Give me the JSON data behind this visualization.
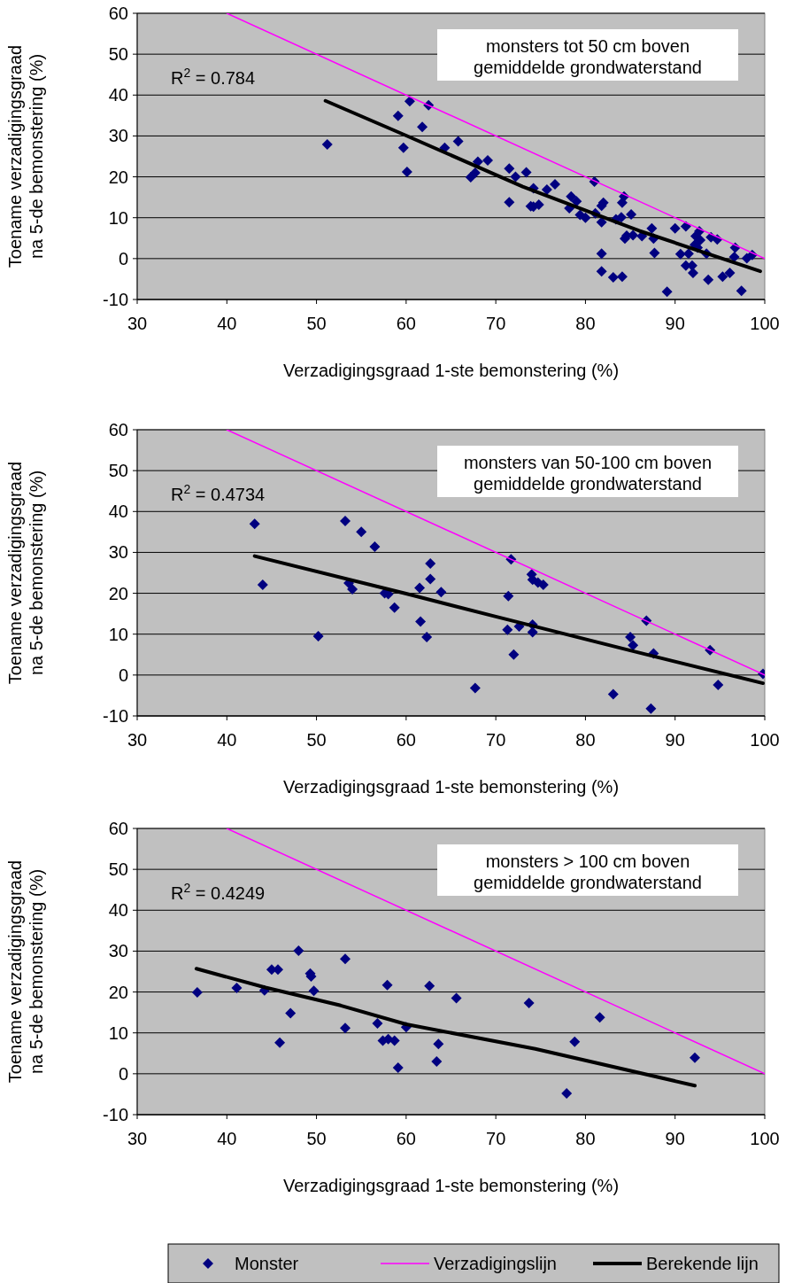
{
  "chart_data": [
    {
      "type": "scatter",
      "xlabel": "Verzadigingsgraad 1-ste bemonstering (%)",
      "ylabel": "Toename verzadigingsgraad na 5-de bemonstering (%)",
      "xlim": [
        30,
        100
      ],
      "xticks": [
        30,
        40,
        50,
        60,
        70,
        80,
        90,
        100
      ],
      "ylim": [
        -10,
        60
      ],
      "yticks": [
        -10,
        0,
        10,
        20,
        30,
        40,
        50,
        60
      ],
      "grid": "y",
      "line_style": "solid",
      "annotations": [
        "R$^{2}$ = 0.784",
        "monsters tot 50 cm boven\ngemiddelde grondwaterstand"
      ],
      "series": [
        {
          "type": "scatter",
          "color": "#000080",
          "marker": "diamond",
          "x": [
            51.2,
            60.4,
            62.5,
            59.1,
            61.8,
            59.7,
            60.1,
            64.3,
            65.8,
            68.0,
            69.1,
            67.2,
            67.7,
            71.5,
            72.2,
            73.4,
            71.5,
            73.9,
            74.2,
            75.7,
            76.6,
            74.2,
            74.8,
            81.0,
            78.4,
            79.0,
            78.2,
            79.4,
            80.0,
            82.0,
            81.8,
            81.1,
            81.8,
            84.3,
            84.1,
            83.4,
            84.0,
            85.1,
            84.6,
            84.4,
            85.3,
            86.3,
            87.4,
            87.6,
            87.7,
            81.8,
            81.8,
            83.1,
            84.1,
            89.1,
            90.0,
            91.2,
            90.6,
            91.5,
            91.2,
            92.0,
            91.9,
            92.3,
            92.7,
            92.8,
            92.2,
            92.5,
            93.5,
            94.0,
            94.7,
            93.7,
            95.3,
            96.1,
            96.7,
            96.6,
            98.0,
            98.6,
            97.4
          ],
          "values": [
            27.9,
            38.5,
            37.5,
            34.9,
            32.2,
            27.1,
            21.2,
            27.1,
            28.7,
            23.7,
            24.0,
            19.9,
            21.0,
            22.0,
            20.0,
            21.1,
            13.8,
            12.8,
            17.2,
            16.9,
            18.2,
            12.7,
            13.2,
            18.8,
            15.2,
            14.0,
            12.3,
            10.7,
            10.0,
            13.7,
            12.9,
            11.1,
            8.9,
            15.2,
            13.7,
            9.6,
            10.1,
            10.8,
            5.6,
            4.9,
            5.7,
            5.5,
            7.4,
            4.9,
            1.4,
            1.2,
            -3.1,
            -4.6,
            -4.4,
            -8.1,
            7.4,
            7.9,
            1.1,
            1.2,
            -1.7,
            -3.5,
            -1.7,
            5.5,
            6.7,
            4.5,
            3.4,
            2.7,
            1.2,
            5.2,
            4.7,
            -5.2,
            -4.4,
            -3.5,
            2.7,
            0.4,
            0.1,
            0.9,
            -7.9
          ]
        },
        {
          "type": "line",
          "color": "#ff00ff",
          "marker": "none",
          "x": [
            40,
            100
          ],
          "values": [
            60,
            0
          ]
        },
        {
          "type": "line",
          "color": "#000000",
          "marker": "none",
          "x": [
            51,
            60,
            73,
            86,
            99.5
          ],
          "values": [
            38.6,
            30.1,
            17.6,
            6.8,
            -3.1
          ]
        }
      ]
    },
    {
      "type": "scatter",
      "xlabel": "Verzadigingsgraad 1-ste bemonstering (%)",
      "ylabel": "Toename verzadigingsgraad na 5-de bemonstering (%)",
      "xlim": [
        30,
        100
      ],
      "xticks": [
        30,
        40,
        50,
        60,
        70,
        80,
        90,
        100
      ],
      "ylim": [
        -10,
        60
      ],
      "yticks": [
        -10,
        0,
        10,
        20,
        30,
        40,
        50,
        60
      ],
      "grid": "y",
      "line_style": "solid",
      "annotations": [
        "R$^{2}$ = 0.4734",
        "monsters van 50-100 cm boven\ngemiddelde grondwaterstand"
      ],
      "series": [
        {
          "type": "scatter",
          "color": "#000080",
          "marker": "diamond",
          "x": [
            43.1,
            44.0,
            50.2,
            53.2,
            55.0,
            56.5,
            53.6,
            54.0,
            57.6,
            58.0,
            58.7,
            61.5,
            62.7,
            62.7,
            63.9,
            61.6,
            62.3,
            67.7,
            71.7,
            71.4,
            71.3,
            72.6,
            72.0,
            74.0,
            74.1,
            74.7,
            75.3,
            74.1,
            74.1,
            83.1,
            85.0,
            85.3,
            86.8,
            87.6,
            87.3,
            93.9,
            94.8,
            99.8
          ],
          "values": [
            37.0,
            22.1,
            9.5,
            37.7,
            35.0,
            31.4,
            22.5,
            21.0,
            20.0,
            19.8,
            16.5,
            21.3,
            27.3,
            23.5,
            20.3,
            13.1,
            9.3,
            -3.2,
            28.3,
            19.3,
            11.1,
            11.9,
            5.0,
            24.6,
            23.3,
            22.6,
            22.1,
            12.3,
            10.5,
            -4.7,
            9.3,
            7.3,
            13.3,
            5.3,
            -8.2,
            6.1,
            -2.4,
            0.3
          ]
        },
        {
          "type": "line",
          "color": "#ff00ff",
          "marker": "none",
          "x": [
            40,
            100
          ],
          "values": [
            60,
            0
          ]
        },
        {
          "type": "line",
          "color": "#000000",
          "marker": "none",
          "x": [
            43.1,
            60,
            70,
            85,
            99.8
          ],
          "values": [
            29.1,
            19.9,
            14.3,
            6.0,
            -2.0
          ]
        }
      ]
    },
    {
      "type": "scatter",
      "xlabel": "Verzadigingsgraad 1-ste bemonstering (%)",
      "ylabel": "Toename verzadigingsgraad na 5-de bemonstering (%)",
      "xlim": [
        30,
        100
      ],
      "xticks": [
        30,
        40,
        50,
        60,
        70,
        80,
        90,
        100
      ],
      "ylim": [
        -10,
        60
      ],
      "yticks": [
        -10,
        0,
        10,
        20,
        30,
        40,
        50,
        60
      ],
      "grid": "y",
      "line_style": "solid",
      "legend": "bottom",
      "annotations": [
        "R$^{2}$ = 0.4249",
        "monsters > 100 cm boven\ngemiddelde grondwaterstand"
      ],
      "series": [
        {
          "name": "Monster",
          "type": "scatter",
          "color": "#000080",
          "marker": "diamond",
          "x": [
            36.7,
            41.1,
            44.2,
            45.0,
            45.7,
            48.0,
            49.3,
            49.4,
            49.7,
            47.1,
            45.9,
            53.2,
            53.2,
            56.8,
            57.4,
            58.0,
            58.7,
            59.1,
            57.9,
            60.0,
            62.6,
            63.6,
            63.4,
            65.6,
            73.7,
            77.9,
            78.8,
            81.6,
            92.2
          ],
          "values": [
            19.9,
            21.0,
            20.4,
            25.5,
            25.5,
            30.1,
            24.5,
            23.8,
            20.3,
            14.8,
            7.6,
            28.1,
            11.2,
            12.3,
            8.1,
            8.5,
            8.1,
            1.5,
            21.7,
            11.4,
            21.5,
            7.3,
            3.0,
            18.5,
            17.3,
            -4.8,
            7.8,
            13.8,
            3.9
          ]
        },
        {
          "name": "Verzadigingslijn",
          "type": "line",
          "color": "#ff00ff",
          "marker": "none",
          "x": [
            40,
            100
          ],
          "values": [
            60,
            0
          ]
        },
        {
          "name": "Berekende lijn",
          "type": "line",
          "color": "#000000",
          "marker": "none",
          "x": [
            36.6,
            44.3,
            52.7,
            60,
            74.4,
            92.2
          ],
          "values": [
            25.7,
            21.1,
            16.7,
            12.1,
            6.1,
            -2.9
          ]
        }
      ]
    }
  ]
}
